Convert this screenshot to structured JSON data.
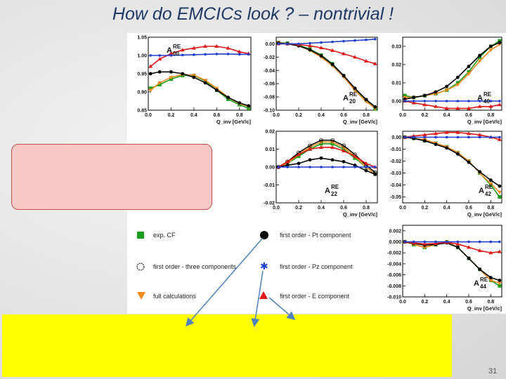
{
  "slide": {
    "title": "How do EMCICs look ? – nontrivial !",
    "page_number": "31"
  },
  "legend": [
    {
      "marker": "green-square",
      "label": "exp. CF",
      "color": "#1a9e1a"
    },
    {
      "marker": "black-circle",
      "label": "first order - Pt component",
      "color": "#000000"
    },
    {
      "marker": "open-circle",
      "label": "first order - three components",
      "color": "#000000"
    },
    {
      "marker": "blue-star",
      "label": "first order - Pz component",
      "color": "#1f3cd0"
    },
    {
      "marker": "orange-triangle-down",
      "label": "full calculations",
      "color": "#f08a1c"
    },
    {
      "marker": "red-triangle-up",
      "label": "first order - E component",
      "color": "#e01818"
    }
  ],
  "chart_data": [
    {
      "type": "scatter",
      "panel": "A00",
      "label": "A",
      "sup": "RE",
      "sub": "00",
      "xlabel": "Q_inv [GeV/c]",
      "xlim": [
        0,
        0.9
      ],
      "ylim": [
        0.85,
        1.05
      ],
      "yticks": [
        "0.85",
        "0.90",
        "0.95",
        "1.00",
        "1.05"
      ],
      "xticks": [
        "0.0",
        "0.2",
        "0.4",
        "0.6",
        "0.8"
      ],
      "x": [
        0.02,
        0.1,
        0.2,
        0.3,
        0.4,
        0.5,
        0.6,
        0.7,
        0.8,
        0.88
      ],
      "series": [
        {
          "name": "exp. CF",
          "values": [
            0.91,
            0.92,
            0.935,
            0.945,
            0.945,
            0.93,
            0.905,
            0.88,
            0.865,
            0.855
          ]
        },
        {
          "name": "full calculations",
          "values": [
            0.905,
            0.925,
            0.94,
            0.948,
            0.946,
            0.932,
            0.91,
            0.885,
            0.868,
            0.86
          ]
        },
        {
          "name": "first order - Pt component",
          "values": [
            0.95,
            0.955,
            0.955,
            0.95,
            0.94,
            0.925,
            0.905,
            0.885,
            0.87,
            0.862
          ]
        },
        {
          "name": "first order - E component",
          "values": [
            0.97,
            0.99,
            1.005,
            1.015,
            1.02,
            1.025,
            1.025,
            1.02,
            1.01,
            1.005
          ]
        },
        {
          "name": "first order - Pz component",
          "values": [
            1.0,
            1.0,
            1.0,
            1.001,
            1.002,
            1.003,
            1.004,
            1.004,
            1.003,
            1.003
          ]
        }
      ]
    },
    {
      "type": "scatter",
      "panel": "A20",
      "label": "A",
      "sup": "RE",
      "sub": "20",
      "xlabel": "Q_inv [GeV/c]",
      "xlim": [
        0,
        0.9
      ],
      "ylim": [
        -0.1,
        0.01
      ],
      "yticks": [
        "-0.10",
        "-0.08",
        "-0.06",
        "-0.04",
        "-0.02",
        "0.00"
      ],
      "xticks": [
        "0.0",
        "0.2",
        "0.4",
        "0.6",
        "0.8"
      ],
      "x": [
        0.02,
        0.1,
        0.2,
        0.3,
        0.4,
        0.5,
        0.6,
        0.7,
        0.8,
        0.88
      ],
      "series": [
        {
          "name": "exp. CF",
          "values": [
            0.002,
            0.001,
            -0.002,
            -0.008,
            -0.017,
            -0.03,
            -0.048,
            -0.068,
            -0.085,
            -0.098
          ]
        },
        {
          "name": "full calculations",
          "values": [
            0.002,
            0.0,
            -0.003,
            -0.01,
            -0.02,
            -0.033,
            -0.05,
            -0.07,
            -0.087,
            -0.097
          ]
        },
        {
          "name": "first order - Pt component",
          "values": [
            0.001,
            0.0,
            -0.003,
            -0.009,
            -0.018,
            -0.031,
            -0.048,
            -0.067,
            -0.084,
            -0.095
          ]
        },
        {
          "name": "first order - E component",
          "values": [
            0.0,
            0.0,
            -0.001,
            -0.003,
            -0.006,
            -0.01,
            -0.015,
            -0.02,
            -0.026,
            -0.03
          ]
        },
        {
          "name": "first order - Pz component",
          "values": [
            0.0,
            0.0,
            0.0,
            0.001,
            0.002,
            0.003,
            0.004,
            0.005,
            0.006,
            0.007
          ]
        }
      ]
    },
    {
      "type": "scatter",
      "panel": "A40",
      "label": "A",
      "sup": "RE",
      "sub": "40",
      "xlabel": "Q_inv [GeV/c]",
      "xlim": [
        0,
        0.9
      ],
      "ylim": [
        -0.005,
        0.035
      ],
      "yticks": [
        "0.00",
        "0.01",
        "0.02",
        "0.03"
      ],
      "xticks": [
        "0.0",
        "0.2",
        "0.4",
        "0.6",
        "0.8"
      ],
      "x": [
        0.02,
        0.1,
        0.2,
        0.3,
        0.4,
        0.5,
        0.6,
        0.7,
        0.8,
        0.88
      ],
      "series": [
        {
          "name": "exp. CF",
          "values": [
            0.003,
            0.002,
            0.003,
            0.004,
            0.006,
            0.01,
            0.016,
            0.024,
            0.03,
            0.033
          ]
        },
        {
          "name": "full calculations",
          "values": [
            0.002,
            0.002,
            0.003,
            0.004,
            0.006,
            0.009,
            0.015,
            0.022,
            0.028,
            0.031
          ]
        },
        {
          "name": "first order - Pt component",
          "values": [
            0.001,
            0.002,
            0.003,
            0.005,
            0.008,
            0.013,
            0.019,
            0.025,
            0.03,
            0.032
          ]
        },
        {
          "name": "first order - E component",
          "values": [
            0.0,
            -0.001,
            -0.002,
            -0.003,
            -0.004,
            -0.004,
            -0.004,
            -0.003,
            -0.003,
            -0.002
          ]
        },
        {
          "name": "first order - Pz component",
          "values": [
            0.0,
            0.0,
            0.0,
            0.0,
            0.0,
            0.0,
            0.0,
            0.0,
            0.0,
            0.0
          ]
        }
      ]
    },
    {
      "type": "scatter",
      "panel": "A22",
      "label": "A",
      "sup": "RE",
      "sub": "22",
      "xlabel": "Q_inv [GeV/c]",
      "xlim": [
        0,
        0.9
      ],
      "ylim": [
        -0.02,
        0.02
      ],
      "yticks": [
        "-0.02",
        "-0.01",
        "0.00",
        "0.01",
        "0.02"
      ],
      "xticks": [
        "0.0",
        "0.2",
        "0.4",
        "0.6",
        "0.8"
      ],
      "x": [
        0.02,
        0.1,
        0.2,
        0.3,
        0.4,
        0.5,
        0.6,
        0.7,
        0.8,
        0.88
      ],
      "series": [
        {
          "name": "exp. CF",
          "values": [
            0.0,
            0.002,
            0.006,
            0.01,
            0.013,
            0.013,
            0.01,
            0.005,
            0.0,
            -0.004
          ]
        },
        {
          "name": "full calculations",
          "values": [
            0.0,
            0.002,
            0.007,
            0.011,
            0.014,
            0.014,
            0.011,
            0.006,
            0.0,
            -0.004
          ]
        },
        {
          "name": "first order - three components",
          "values": [
            0.0,
            0.003,
            0.008,
            0.012,
            0.015,
            0.015,
            0.012,
            0.007,
            0.001,
            -0.003
          ]
        },
        {
          "name": "first order - Pt component",
          "values": [
            0.0,
            0.001,
            0.002,
            0.004,
            0.005,
            0.004,
            0.003,
            0.001,
            -0.002,
            -0.004
          ]
        },
        {
          "name": "first order - E component",
          "values": [
            0.0,
            0.003,
            0.007,
            0.01,
            0.011,
            0.011,
            0.009,
            0.006,
            0.002,
            0.0
          ]
        },
        {
          "name": "first order - Pz component",
          "values": [
            0.0,
            0.0,
            0.0,
            0.0,
            0.0,
            0.0,
            0.0,
            0.0,
            0.0,
            0.0
          ]
        }
      ]
    },
    {
      "type": "scatter",
      "panel": "A42",
      "label": "A",
      "sup": "RE",
      "sub": "42",
      "xlabel": "Q_inv [GeV/c]",
      "xlim": [
        0,
        0.9
      ],
      "ylim": [
        -0.055,
        0.005
      ],
      "yticks": [
        "-0.05",
        "-0.04",
        "-0.03",
        "-0.02",
        "-0.01",
        "0.00"
      ],
      "xticks": [
        "0.0",
        "0.2",
        "0.4",
        "0.6",
        "0.8"
      ],
      "x": [
        0.02,
        0.1,
        0.2,
        0.3,
        0.4,
        0.5,
        0.6,
        0.7,
        0.8,
        0.88
      ],
      "series": [
        {
          "name": "exp. CF",
          "values": [
            0.0,
            -0.001,
            -0.003,
            -0.005,
            -0.008,
            -0.013,
            -0.02,
            -0.03,
            -0.04,
            -0.05
          ]
        },
        {
          "name": "full calculations",
          "values": [
            0.0,
            -0.001,
            -0.002,
            -0.005,
            -0.008,
            -0.013,
            -0.02,
            -0.03,
            -0.039,
            -0.046
          ]
        },
        {
          "name": "first order - Pt component",
          "values": [
            0.0,
            -0.001,
            -0.003,
            -0.006,
            -0.009,
            -0.014,
            -0.021,
            -0.029,
            -0.036,
            -0.041
          ]
        },
        {
          "name": "first order - E component",
          "values": [
            0.0,
            0.001,
            0.002,
            0.003,
            0.004,
            0.004,
            0.003,
            0.002,
            0.0,
            -0.002
          ]
        },
        {
          "name": "first order - Pz component",
          "values": [
            0.0,
            0.0,
            0.0,
            0.0,
            0.0,
            0.0,
            0.0,
            0.0,
            0.0,
            0.0
          ]
        }
      ]
    },
    {
      "type": "scatter",
      "panel": "A44",
      "label": "A",
      "sup": "RE",
      "sub": "44",
      "xlabel": "Q_inv [GeV/c]",
      "xlim": [
        0,
        0.9
      ],
      "ylim": [
        -0.01,
        0.003
      ],
      "yticks": [
        "-0.010",
        "-0.008",
        "-0.006",
        "-0.004",
        "-0.002",
        "0.000",
        "0.002"
      ],
      "xticks": [
        "0.0",
        "0.2",
        "0.4",
        "0.6",
        "0.8"
      ],
      "x": [
        0.02,
        0.1,
        0.2,
        0.3,
        0.4,
        0.5,
        0.6,
        0.7,
        0.8,
        0.88
      ],
      "series": [
        {
          "name": "exp. CF",
          "values": [
            0.0,
            -0.0005,
            -0.001,
            -0.0005,
            0.0,
            -0.001,
            -0.003,
            -0.005,
            -0.007,
            -0.008
          ]
        },
        {
          "name": "full calculations",
          "values": [
            0.0,
            -0.0005,
            -0.001,
            -0.0005,
            0.0,
            -0.001,
            -0.003,
            -0.005,
            -0.007,
            -0.0075
          ]
        },
        {
          "name": "first order - Pt component",
          "values": [
            0.0,
            -0.0003,
            -0.0006,
            -0.0005,
            -0.0002,
            -0.001,
            -0.003,
            -0.005,
            -0.0065,
            -0.007
          ]
        },
        {
          "name": "first order - E component",
          "values": [
            0.0,
            -0.0002,
            -0.0004,
            -0.0003,
            -0.0001,
            -0.0004,
            -0.001,
            -0.0016,
            -0.002,
            -0.0018
          ]
        },
        {
          "name": "first order - Pz component",
          "values": [
            0.0,
            0.0,
            0.0,
            0.0,
            0.0,
            0.0,
            0.0,
            0.0,
            0.0,
            0.0
          ]
        }
      ]
    }
  ]
}
